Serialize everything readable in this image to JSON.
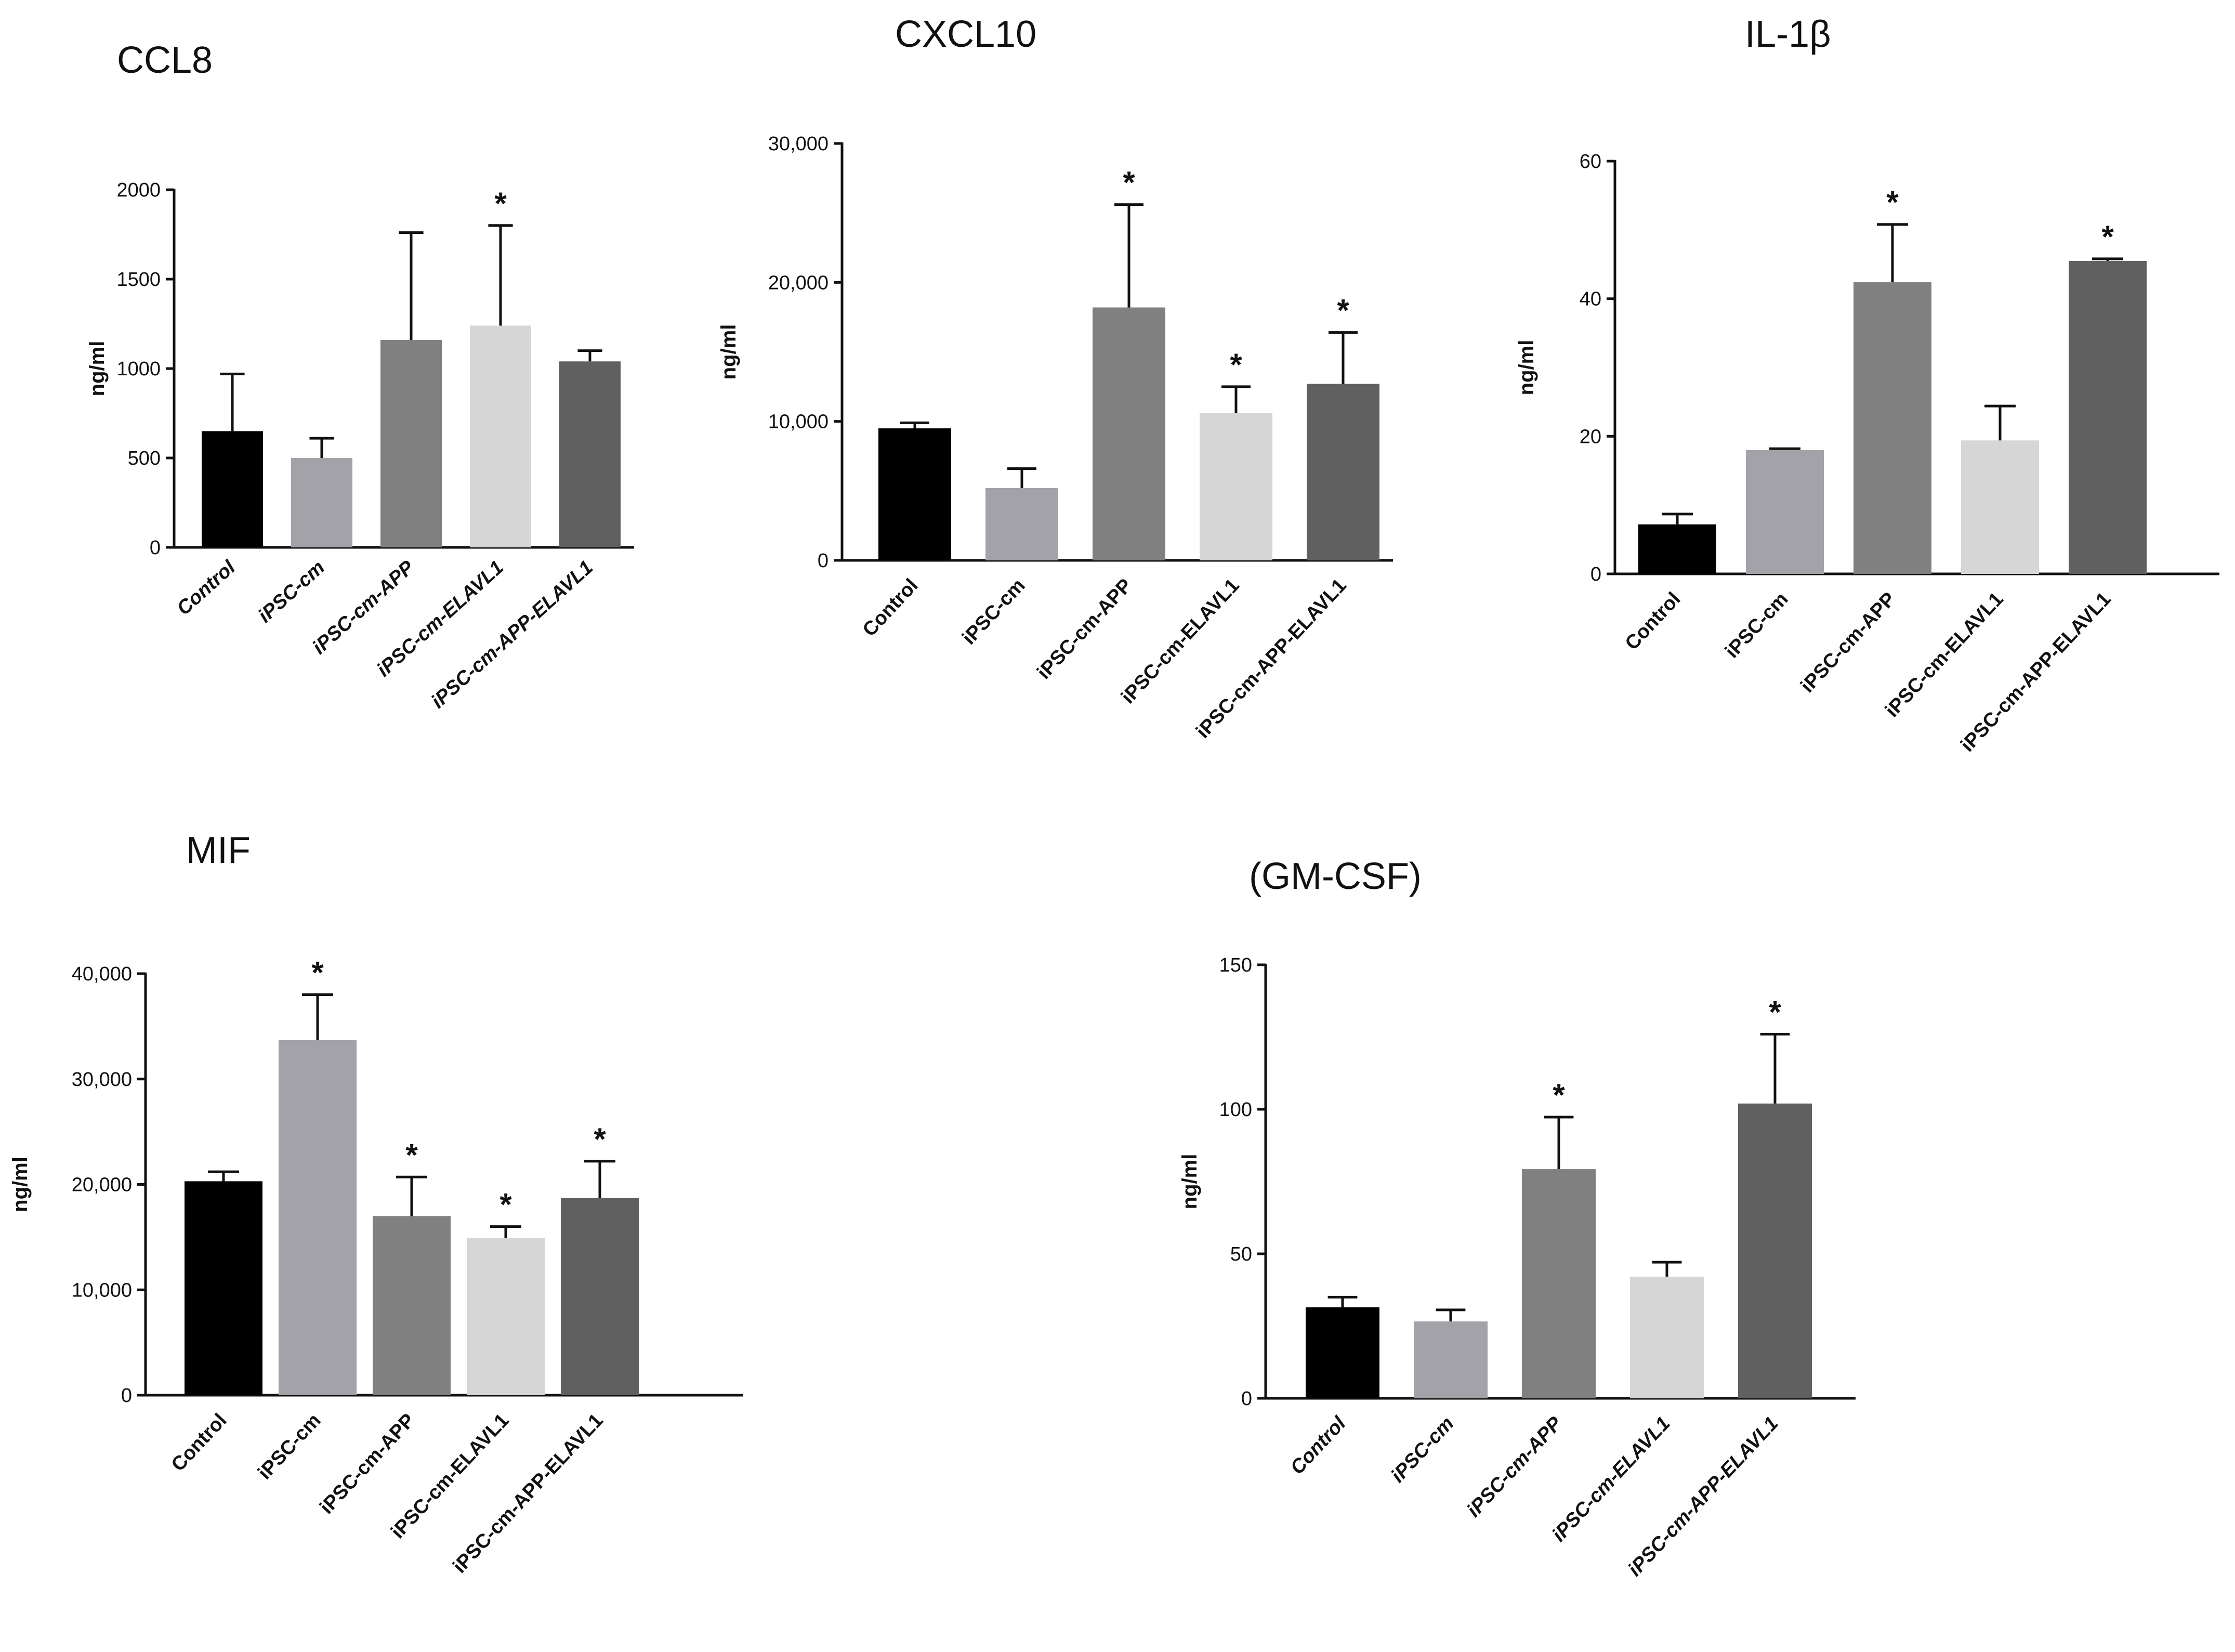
{
  "chart_data": [
    {
      "type": "bar",
      "title": "CCL8",
      "ylabel": "ng/ml",
      "xlabel": "",
      "ylim": [
        0,
        2000
      ],
      "yticks": [
        0,
        500,
        1000,
        1500,
        2000
      ],
      "tick_labels": [
        "0",
        "500",
        "1000",
        "1500",
        "2000"
      ],
      "categories": [
        "Control",
        "iPSC-cm",
        "iPSC-cm-APP",
        "iPSC-cm-ELAVL1",
        "iPSC-cm-APP-ELAVL1"
      ],
      "values": [
        650,
        500,
        1160,
        1240,
        1040
      ],
      "errors": [
        320,
        110,
        600,
        560,
        60
      ],
      "significant": [
        false,
        false,
        false,
        true,
        false
      ],
      "significance_marker": "*",
      "colors": [
        "#000000",
        "#a2a2a8",
        "#808080",
        "#d6d6d6",
        "#606060"
      ],
      "italic_categories": true
    },
    {
      "type": "bar",
      "title": "CXCL10",
      "ylabel": "ng/ml",
      "xlabel": "",
      "ylim": [
        0,
        30000
      ],
      "yticks": [
        0,
        10000,
        20000,
        30000
      ],
      "tick_labels": [
        "0",
        "10,000",
        "20,000",
        "30,000"
      ],
      "categories": [
        "Control",
        "iPSC-cm",
        "iPSC-cm-APP",
        "iPSC-cm-ELAVL1",
        "iPSC-cm-APP-ELAVL1"
      ],
      "values": [
        9500,
        5200,
        18200,
        10600,
        12700
      ],
      "errors": [
        400,
        1400,
        7400,
        1900,
        3700
      ],
      "significant": [
        false,
        false,
        true,
        true,
        true
      ],
      "significance_marker": "*",
      "colors": [
        "#000000",
        "#a2a2a8",
        "#808080",
        "#d6d6d6",
        "#606060"
      ],
      "italic_categories": false
    },
    {
      "type": "bar",
      "title": "IL-1β",
      "ylabel": "ng/ml",
      "xlabel": "",
      "ylim": [
        0,
        60
      ],
      "yticks": [
        0,
        20,
        40,
        60
      ],
      "tick_labels": [
        "0",
        "20",
        "40",
        "60"
      ],
      "categories": [
        "Control",
        "iPSC-cm",
        "iPSC-cm-APP",
        "iPSC-cm-ELAVL1",
        "iPSC-cm-APP-ELAVL1"
      ],
      "values": [
        7.2,
        18,
        42.4,
        19.4,
        45.5
      ],
      "errors": [
        1.5,
        0.2,
        8.4,
        5,
        0.3
      ],
      "significant": [
        false,
        false,
        true,
        false,
        true
      ],
      "significance_marker": "*",
      "colors": [
        "#000000",
        "#a2a2a8",
        "#808080",
        "#d6d6d6",
        "#606060"
      ],
      "italic_categories": false
    },
    {
      "type": "bar",
      "title": "MIF",
      "ylabel": "ng/ml",
      "xlabel": "",
      "ylim": [
        0,
        40000
      ],
      "yticks": [
        0,
        10000,
        20000,
        30000,
        40000
      ],
      "tick_labels": [
        "0",
        "10,000",
        "20,000",
        "30,000",
        "40,000"
      ],
      "categories": [
        "Control",
        "iPSC-cm",
        "iPSC-cm-APP",
        "iPSC-cm-ELAVL1",
        "iPSC-cm-APP-ELAVL1"
      ],
      "values": [
        20300,
        33700,
        17000,
        14900,
        18700
      ],
      "errors": [
        900,
        4300,
        3700,
        1100,
        3500
      ],
      "significant": [
        false,
        true,
        true,
        true,
        true
      ],
      "significance_marker": "*",
      "colors": [
        "#000000",
        "#a2a2a8",
        "#808080",
        "#d6d6d6",
        "#606060"
      ],
      "italic_categories": false
    },
    {
      "type": "bar",
      "title": "(GM-CSF)",
      "ylabel": "ng/ml",
      "xlabel": "",
      "ylim": [
        0,
        150
      ],
      "yticks": [
        0,
        50,
        100,
        150
      ],
      "tick_labels": [
        "0",
        "50",
        "100",
        "150"
      ],
      "categories": [
        "Control",
        "iPSC-cm",
        "iPSC-cm-APP",
        "iPSC-cm-ELAVL1",
        "iPSC-cm-APP-ELAVL1"
      ],
      "values": [
        31.5,
        26.6,
        79.3,
        42.1,
        102
      ],
      "errors": [
        3.5,
        4,
        18,
        5,
        24
      ],
      "significant": [
        false,
        false,
        true,
        false,
        true
      ],
      "significance_marker": "*",
      "colors": [
        "#000000",
        "#a2a2a8",
        "#808080",
        "#d6d6d6",
        "#606060"
      ],
      "italic_categories": true
    }
  ]
}
